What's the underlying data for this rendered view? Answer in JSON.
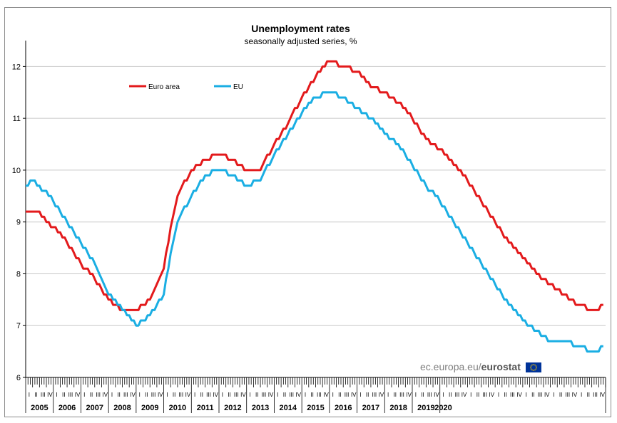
{
  "chart_data": {
    "type": "line",
    "title": "Unemployment rates",
    "subtitle": "seasonally adjusted series, %",
    "xlabel": "",
    "ylabel": "",
    "ylim": [
      6,
      12.5
    ],
    "yticks": [
      "6",
      "7",
      "8",
      "9",
      "10",
      "11",
      "12"
    ],
    "grid": true,
    "legend_position": "top-left",
    "x_start": "2005-01",
    "years": [
      "2005",
      "2006",
      "2007",
      "2008",
      "2009",
      "2010",
      "2011",
      "2012",
      "2013",
      "2014",
      "2015",
      "2016",
      "2017",
      "2018",
      "2019",
      "2020"
    ],
    "quarters": [
      "I",
      "II",
      "III",
      "IV"
    ],
    "series": [
      {
        "name": "Euro area",
        "color": "#e31a1c",
        "anchors": [
          [
            0,
            9.2
          ],
          [
            6,
            9.2
          ],
          [
            9,
            9.0
          ],
          [
            12,
            8.9
          ],
          [
            18,
            8.6
          ],
          [
            24,
            8.2
          ],
          [
            30,
            7.9
          ],
          [
            36,
            7.5
          ],
          [
            42,
            7.3
          ],
          [
            48,
            7.3
          ],
          [
            54,
            7.5
          ],
          [
            60,
            8.1
          ],
          [
            63,
            8.9
          ],
          [
            66,
            9.5
          ],
          [
            72,
            10.0
          ],
          [
            78,
            10.2
          ],
          [
            84,
            10.3
          ],
          [
            90,
            10.2
          ],
          [
            96,
            10.0
          ],
          [
            102,
            10.0
          ],
          [
            108,
            10.5
          ],
          [
            114,
            10.9
          ],
          [
            120,
            11.4
          ],
          [
            126,
            11.8
          ],
          [
            132,
            12.1
          ],
          [
            138,
            12.0
          ],
          [
            144,
            11.9
          ],
          [
            150,
            11.6
          ],
          [
            156,
            11.5
          ],
          [
            162,
            11.3
          ],
          [
            168,
            11.0
          ],
          [
            174,
            10.6
          ],
          [
            180,
            10.4
          ],
          [
            186,
            10.1
          ],
          [
            192,
            9.8
          ],
          [
            198,
            9.4
          ],
          [
            204,
            9.0
          ],
          [
            210,
            8.6
          ],
          [
            216,
            8.3
          ],
          [
            222,
            8.0
          ],
          [
            228,
            7.8
          ],
          [
            234,
            7.6
          ],
          [
            240,
            7.4
          ],
          [
            246,
            7.3
          ],
          [
            249,
            7.3
          ],
          [
            251,
            7.4
          ]
        ]
      },
      {
        "name": "EU",
        "color": "#1aaee3",
        "anchors": [
          [
            0,
            9.7
          ],
          [
            3,
            9.8
          ],
          [
            6,
            9.7
          ],
          [
            12,
            9.4
          ],
          [
            18,
            9.0
          ],
          [
            24,
            8.6
          ],
          [
            30,
            8.2
          ],
          [
            36,
            7.6
          ],
          [
            42,
            7.3
          ],
          [
            48,
            7.0
          ],
          [
            54,
            7.2
          ],
          [
            60,
            7.6
          ],
          [
            63,
            8.4
          ],
          [
            66,
            9.0
          ],
          [
            72,
            9.5
          ],
          [
            78,
            9.9
          ],
          [
            84,
            10.0
          ],
          [
            90,
            9.9
          ],
          [
            96,
            9.7
          ],
          [
            102,
            9.8
          ],
          [
            108,
            10.3
          ],
          [
            114,
            10.7
          ],
          [
            120,
            11.1
          ],
          [
            126,
            11.4
          ],
          [
            132,
            11.5
          ],
          [
            138,
            11.4
          ],
          [
            144,
            11.2
          ],
          [
            150,
            11.0
          ],
          [
            156,
            10.7
          ],
          [
            162,
            10.5
          ],
          [
            168,
            10.1
          ],
          [
            174,
            9.7
          ],
          [
            180,
            9.4
          ],
          [
            186,
            9.0
          ],
          [
            192,
            8.6
          ],
          [
            198,
            8.2
          ],
          [
            204,
            7.8
          ],
          [
            210,
            7.4
          ],
          [
            216,
            7.1
          ],
          [
            222,
            6.9
          ],
          [
            228,
            6.7
          ],
          [
            234,
            6.7
          ],
          [
            240,
            6.6
          ],
          [
            246,
            6.5
          ],
          [
            249,
            6.5
          ],
          [
            251,
            6.6
          ]
        ]
      }
    ]
  },
  "watermark": {
    "prefix": "ec.europa.eu/",
    "brand": "eurostat"
  }
}
